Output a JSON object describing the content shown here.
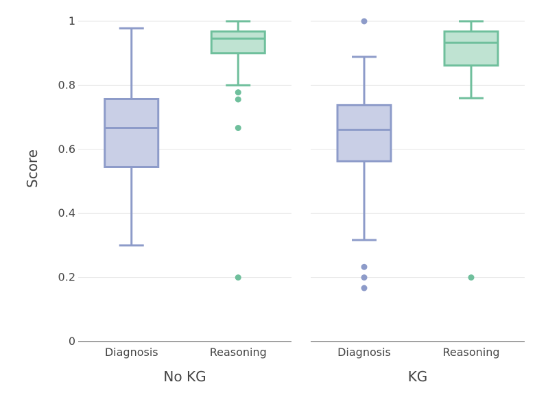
{
  "chart_data": {
    "type": "box",
    "ylabel": "Score",
    "ylim": [
      0,
      1
    ],
    "yticks": [
      0,
      0.2,
      0.4,
      0.6,
      0.8,
      1
    ],
    "ytick_labels": [
      "0",
      "0.2",
      "0.4",
      "0.6",
      "0.8",
      "1"
    ],
    "grid": true,
    "colors": {
      "Diagnosis": {
        "stroke": "#8d9bc9",
        "fill": "#c9cfe6"
      },
      "Reasoning": {
        "stroke": "#6fbf9c",
        "fill": "#bfe3d2"
      },
      "grid": "#e6e6e6",
      "axis": "#444444"
    },
    "panels": [
      {
        "title": "No KG",
        "categories": [
          "Diagnosis",
          "Reasoning"
        ],
        "boxes": [
          {
            "category": "Diagnosis",
            "whisker_low": 0.3,
            "q1": 0.545,
            "median": 0.667,
            "q3": 0.757,
            "whisker_high": 0.978,
            "outliers": []
          },
          {
            "category": "Reasoning",
            "whisker_low": 0.8,
            "q1": 0.9,
            "median": 0.946,
            "q3": 0.968,
            "whisker_high": 1.0,
            "outliers": [
              0.778,
              0.756,
              0.667,
              0.2
            ]
          }
        ]
      },
      {
        "title": "KG",
        "categories": [
          "Diagnosis",
          "Reasoning"
        ],
        "boxes": [
          {
            "category": "Diagnosis",
            "whisker_low": 0.317,
            "q1": 0.563,
            "median": 0.661,
            "q3": 0.738,
            "whisker_high": 0.889,
            "outliers": [
              1.0,
              0.233,
              0.2,
              0.167
            ]
          },
          {
            "category": "Reasoning",
            "whisker_low": 0.76,
            "q1": 0.862,
            "median": 0.933,
            "q3": 0.968,
            "whisker_high": 1.0,
            "outliers": [
              0.2
            ]
          }
        ]
      }
    ]
  }
}
